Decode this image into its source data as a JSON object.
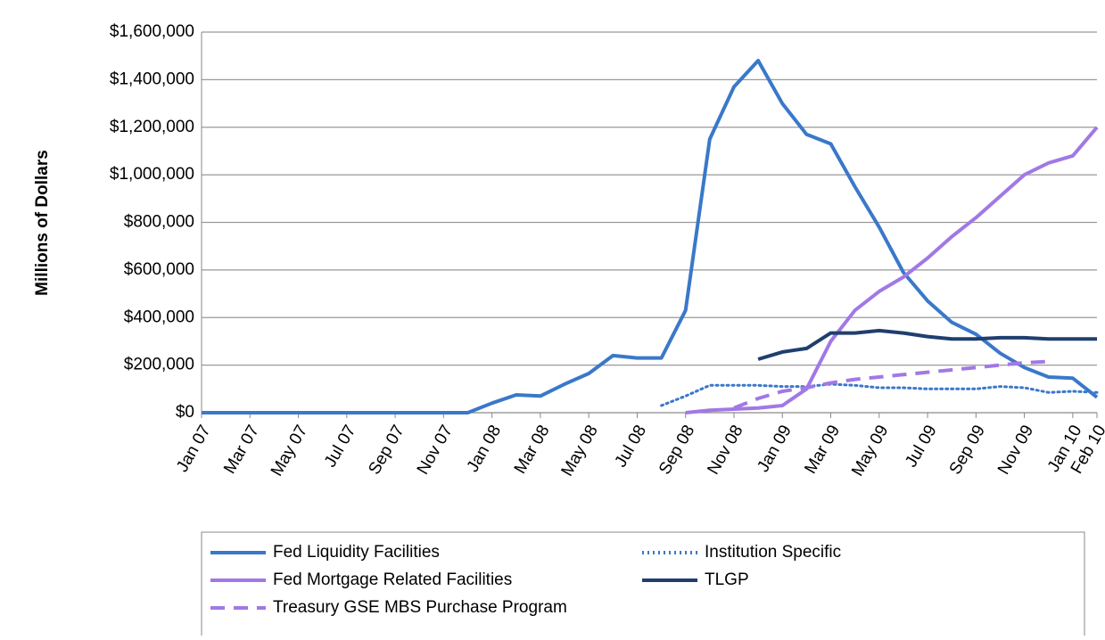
{
  "chart_data": {
    "type": "line",
    "ylabel": "Millions of Dollars",
    "categories": [
      "Jan 07",
      null,
      "Mar 07",
      null,
      "May 07",
      null,
      "Jul 07",
      null,
      "Sep 07",
      null,
      "Nov 07",
      null,
      "Jan 08",
      null,
      "Mar 08",
      null,
      "May 08",
      null,
      "Jul 08",
      null,
      "Sep 08",
      null,
      "Nov 08",
      null,
      "Jan 09",
      null,
      "Mar 09",
      null,
      "May 09",
      null,
      "Jul 09",
      null,
      "Sep 09",
      null,
      "Nov 09",
      null,
      "Jan 10",
      "Feb 10"
    ],
    "series": [
      {
        "name": "Fed Liquidity Facilities",
        "color": "#3a78c9",
        "dash": "solid",
        "values": [
          0,
          0,
          0,
          0,
          0,
          0,
          0,
          0,
          0,
          0,
          0,
          0,
          40000,
          75000,
          70000,
          120000,
          165000,
          240000,
          230000,
          230000,
          430000,
          1150000,
          1370000,
          1480000,
          1300000,
          1170000,
          1130000,
          950000,
          780000,
          590000,
          470000,
          380000,
          330000,
          250000,
          190000,
          150000,
          145000,
          65000
        ]
      },
      {
        "name": "Institution Specific",
        "color": "#3a78c9",
        "dash": "dotted",
        "values": [
          null,
          null,
          null,
          null,
          null,
          null,
          null,
          null,
          null,
          null,
          null,
          null,
          null,
          null,
          null,
          null,
          null,
          null,
          null,
          30000,
          70000,
          115000,
          115000,
          115000,
          110000,
          110000,
          120000,
          115000,
          105000,
          105000,
          100000,
          100000,
          100000,
          110000,
          105000,
          85000,
          90000,
          85000
        ]
      },
      {
        "name": "Fed Mortgage Related Facilities",
        "color": "#a178e6",
        "dash": "solid",
        "values": [
          null,
          null,
          null,
          null,
          null,
          null,
          null,
          null,
          null,
          null,
          null,
          null,
          null,
          null,
          null,
          null,
          null,
          null,
          null,
          null,
          0,
          10000,
          15000,
          20000,
          30000,
          100000,
          300000,
          430000,
          510000,
          570000,
          650000,
          740000,
          820000,
          910000,
          1000000,
          1050000,
          1080000,
          1200000
        ]
      },
      {
        "name": "TLGP",
        "color": "#1f3f6e",
        "dash": "solid",
        "values": [
          null,
          null,
          null,
          null,
          null,
          null,
          null,
          null,
          null,
          null,
          null,
          null,
          null,
          null,
          null,
          null,
          null,
          null,
          null,
          null,
          null,
          null,
          null,
          225000,
          255000,
          270000,
          335000,
          335000,
          345000,
          335000,
          320000,
          310000,
          310000,
          315000,
          315000,
          310000,
          310000,
          310000
        ]
      },
      {
        "name": "Treasury GSE MBS Purchase Program",
        "color": "#a178e6",
        "dash": "dashed",
        "values": [
          null,
          null,
          null,
          null,
          null,
          null,
          null,
          null,
          null,
          null,
          null,
          null,
          null,
          null,
          null,
          null,
          null,
          null,
          null,
          null,
          null,
          null,
          20000,
          60000,
          90000,
          105000,
          125000,
          140000,
          150000,
          160000,
          170000,
          180000,
          190000,
          200000,
          210000,
          215000,
          null,
          null
        ]
      }
    ],
    "ylim": [
      0,
      1600000
    ],
    "yticks": [
      {
        "value": 0,
        "label": "$0"
      },
      {
        "value": 200000,
        "label": "$200,000"
      },
      {
        "value": 400000,
        "label": "$400,000"
      },
      {
        "value": 600000,
        "label": "$600,000"
      },
      {
        "value": 800000,
        "label": "$800,000"
      },
      {
        "value": 1000000,
        "label": "$1,000,000"
      },
      {
        "value": 1200000,
        "label": "$1,200,000"
      },
      {
        "value": 1400000,
        "label": "$1,400,000"
      },
      {
        "value": 1600000,
        "label": "$1,600,000"
      }
    ],
    "grid": true
  }
}
